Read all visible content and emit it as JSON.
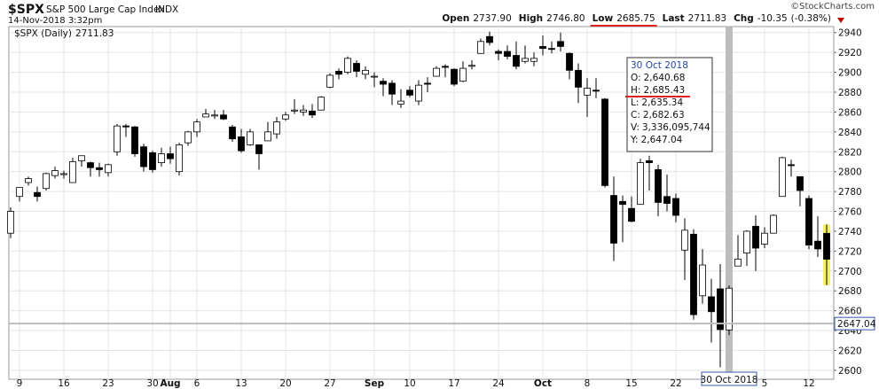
{
  "header": {
    "symbol": "$SPX",
    "name": "S&P 500 Large Cap Index",
    "exchange": "INDX",
    "timestamp": "14-Nov-2018 3:32pm",
    "credit": "©StockCharts.com",
    "quote": [
      {
        "label": "Open",
        "value": 2737.9,
        "text": "2737.90"
      },
      {
        "label": "High",
        "value": 2746.8,
        "text": "2746.80"
      },
      {
        "label": "Low",
        "value": 2685.75,
        "text": "2685.75"
      },
      {
        "label": "Last",
        "value": 2711.83,
        "text": "2711.83"
      },
      {
        "label": "Chg",
        "value": -10.35,
        "text": "-10.35"
      },
      {
        "value": -0.38,
        "text": "(-0.38%)"
      }
    ]
  },
  "chart_data": {
    "type": "candlestick",
    "series_name": "$SPX (Daily)",
    "categories": [
      null,
      "9",
      null,
      null,
      null,
      null,
      "16",
      null,
      null,
      null,
      null,
      "23",
      null,
      null,
      null,
      null,
      "30",
      null,
      "Aug",
      null,
      null,
      "6",
      null,
      null,
      null,
      null,
      "13",
      null,
      null,
      null,
      null,
      "20",
      null,
      null,
      null,
      null,
      "27",
      null,
      null,
      null,
      null,
      "Sep",
      null,
      null,
      null,
      "10",
      null,
      null,
      null,
      null,
      "17",
      null,
      null,
      null,
      null,
      "24",
      null,
      null,
      null,
      null,
      "Oct",
      null,
      null,
      null,
      null,
      "8",
      null,
      null,
      null,
      null,
      "15",
      null,
      null,
      null,
      null,
      "22",
      null,
      null,
      null,
      null,
      null,
      null,
      null,
      null,
      null,
      "5",
      null,
      null,
      null,
      null,
      "12",
      null,
      null
    ],
    "open": [
      2738,
      2775,
      2789,
      2779,
      2783,
      2796,
      2797,
      2789,
      2811,
      2809,
      2804,
      2799,
      2820,
      2846,
      2845,
      2825,
      2819,
      2809,
      2818,
      2800,
      2829,
      2840,
      2855,
      2856,
      2857,
      2845,
      2835,
      2827,
      2827,
      2831,
      2838,
      2853,
      2861,
      2860,
      2861,
      2862,
      2885,
      2901,
      2900,
      2909,
      2898,
      2896,
      2891,
      2889,
      2868,
      2882,
      2871,
      2889,
      2896,
      2906,
      2903,
      2891,
      2906,
      2919,
      2936,
      2921,
      2921,
      2917,
      2911,
      2911,
      2926,
      2924,
      2931,
      2919,
      2902,
      2877,
      2882,
      2873,
      2776,
      2770,
      2763,
      2767,
      2811,
      2802,
      2775,
      2773,
      2721,
      2737,
      2675,
      2674,
      2682,
      2640.68,
      2705,
      2718,
      2745,
      2727,
      2738,
      2775,
      2807,
      2795,
      2773,
      2730,
      2737.9
    ],
    "high": [
      2764,
      2784,
      2795,
      2785,
      2799,
      2805,
      2801,
      2814,
      2816,
      2810,
      2809,
      2808,
      2848,
      2848,
      2846,
      2828,
      2821,
      2824,
      2825,
      2829,
      2841,
      2853,
      2863,
      2862,
      2862,
      2847,
      2843,
      2843,
      2827,
      2850,
      2855,
      2860,
      2873,
      2867,
      2868,
      2876,
      2899,
      2904,
      2916,
      2912,
      2906,
      2900,
      2894,
      2892,
      2883,
      2886,
      2892,
      2895,
      2906,
      2908,
      2904,
      2911,
      2912,
      2934,
      2941,
      2923,
      2927,
      2931,
      2927,
      2920,
      2937,
      2931,
      2940,
      2920,
      2909,
      2894,
      2894,
      2874,
      2795,
      2776,
      2775,
      2813,
      2816,
      2807,
      2797,
      2778,
      2753,
      2742,
      2722,
      2692,
      2707,
      2685.43,
      2736,
      2741,
      2756,
      2744,
      2757,
      2815,
      2812,
      2795,
      2776,
      2755,
      2746.8
    ],
    "low": [
      2733,
      2770,
      2786,
      2770,
      2781,
      2793,
      2793,
      2789,
      2805,
      2795,
      2795,
      2795,
      2816,
      2835,
      2815,
      2800,
      2799,
      2805,
      2808,
      2796,
      2826,
      2835,
      2855,
      2853,
      2852,
      2830,
      2819,
      2826,
      2802,
      2831,
      2833,
      2851,
      2858,
      2856,
      2854,
      2862,
      2884,
      2893,
      2898,
      2895,
      2893,
      2885,
      2876,
      2867,
      2864,
      2875,
      2867,
      2880,
      2896,
      2895,
      2886,
      2890,
      2903,
      2919,
      2927,
      2912,
      2913,
      2903,
      2909,
      2906,
      2917,
      2919,
      2921,
      2893,
      2869,
      2855,
      2874,
      2784,
      2710,
      2729,
      2749,
      2767,
      2781,
      2755,
      2760,
      2749,
      2691,
      2651,
      2667,
      2628,
      2603,
      2635.34,
      2705,
      2705,
      2700,
      2723,
      2738,
      2775,
      2795,
      2765,
      2722,
      2714,
      2685.75
    ],
    "close": [
      2760,
      2784,
      2793,
      2775,
      2798,
      2801,
      2798,
      2810,
      2816,
      2804,
      2802,
      2807,
      2846,
      2845,
      2818,
      2805,
      2802,
      2818,
      2813,
      2827,
      2840,
      2850,
      2858,
      2857,
      2853,
      2833,
      2821,
      2840,
      2818,
      2840,
      2850,
      2857,
      2862,
      2862,
      2857,
      2875,
      2897,
      2898,
      2914,
      2901,
      2902,
      2896,
      2888,
      2878,
      2871,
      2877,
      2887,
      2888,
      2904,
      2905,
      2888,
      2904,
      2907,
      2931,
      2930,
      2919,
      2916,
      2906,
      2914,
      2914,
      2924,
      2923,
      2926,
      2902,
      2885,
      2884,
      2881,
      2786,
      2728,
      2767,
      2750,
      2809,
      2809,
      2769,
      2768,
      2756,
      2741,
      2656,
      2706,
      2659,
      2641,
      2682.63,
      2712,
      2740,
      2723,
      2738,
      2756,
      2814,
      2806,
      2781,
      2726,
      2722.18,
      2711.83
    ],
    "ylim": [
      2591,
      2946
    ],
    "yticks": [
      2600,
      2620,
      2640,
      2660,
      2680,
      2700,
      2720,
      2740,
      2760,
      2780,
      2800,
      2820,
      2840,
      2860,
      2880,
      2900,
      2920,
      2940
    ],
    "grid": true,
    "up_color": "#ffffff",
    "down_color": "#000000",
    "highlight_color": "#f5f06a",
    "crosshair_color": "#bdbdbd",
    "crosshair": {
      "date": "30 Oct 2018",
      "price": 2647.04
    },
    "tooltip": {
      "title": "30 Oct 2018",
      "rows": [
        {
          "key": "O:",
          "value": 2640.68,
          "text": "2,640.68"
        },
        {
          "key": "H:",
          "value": 2685.43,
          "text": "2,685.43"
        },
        {
          "key": "L:",
          "value": 2635.34,
          "text": "2,635.34"
        },
        {
          "key": "C:",
          "value": 2682.63,
          "text": "2,682.63"
        },
        {
          "key": "V:",
          "value": 3336095744,
          "text": "3,336,095,744"
        },
        {
          "key": "Y:",
          "value": 2647.04,
          "text": "2,647.04"
        }
      ]
    }
  }
}
